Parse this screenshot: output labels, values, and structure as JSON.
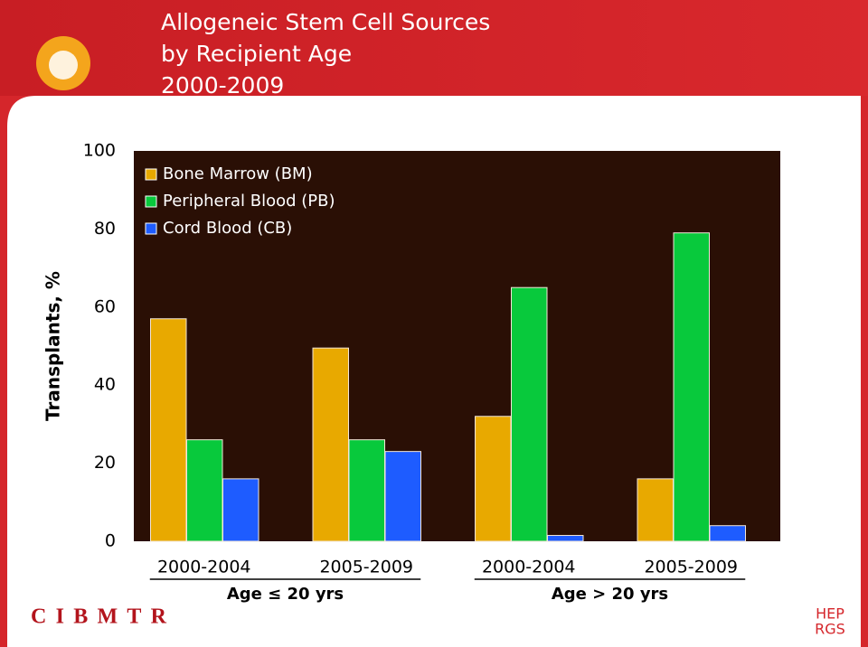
{
  "chart_data": {
    "type": "bar",
    "title": [
      "Allogeneic Stem Cell Sources",
      "by Recipient Age",
      "2000-2009"
    ],
    "y_label": "Transplants, %",
    "categories": [
      "2000-2004",
      "2005-2009",
      "2000-2004",
      "2005-2009"
    ],
    "groups": [
      {
        "label": "Age ≤ 20 yrs",
        "span": [
          0,
          1
        ]
      },
      {
        "label": "Age > 20 yrs",
        "span": [
          2,
          3
        ]
      }
    ],
    "series": [
      {
        "name": "Bone Marrow (BM)",
        "color": "#e8a900",
        "values": [
          57,
          49.5,
          32,
          16
        ]
      },
      {
        "name": "Peripheral Blood (PB)",
        "color": "#08c93c",
        "values": [
          26,
          26,
          65,
          79
        ]
      },
      {
        "name": "Cord Blood (CB)",
        "color": "#1e5cff",
        "values": [
          16,
          23,
          1.5,
          4
        ]
      }
    ],
    "ylim": [
      0,
      100
    ],
    "yticks": [
      0,
      20,
      40,
      60,
      80,
      100
    ],
    "grid": false,
    "legend": "top-left"
  },
  "logos": [
    "CIBMTR",
    "HEP",
    "RGS"
  ]
}
